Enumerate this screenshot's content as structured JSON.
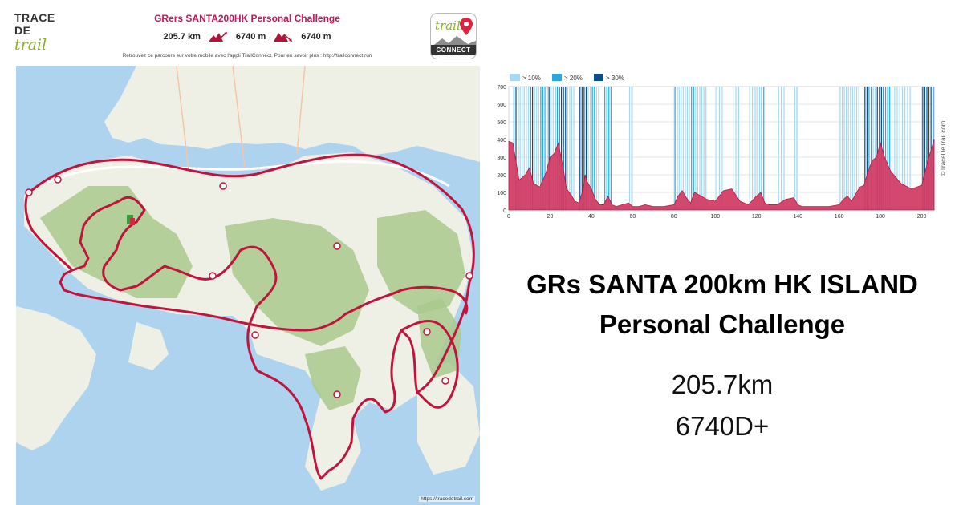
{
  "brand": {
    "line1": "TRACE",
    "line2": "DE",
    "line3": "trail"
  },
  "map_header": {
    "title": "GRers SANTA200HK Personal Challenge",
    "distance": "205.7 km",
    "ascent": "6740 m",
    "descent": "6740 m",
    "promo": "Retrouvez ce parcours sur votre mobile avec l'appli TrailConnect. Pour en savoir plus : http://trailconnect.run"
  },
  "trailconnect_logo": {
    "top": "trail",
    "bottom": "CONNECT"
  },
  "map": {
    "credit": "https://tracedetrail.com",
    "route_color": "#c0143c",
    "water_color": "#aed3ef",
    "land_color": "#eef0e6",
    "forest_color": "#a9c98b"
  },
  "profile": {
    "legend": [
      "> 10%",
      "> 20%",
      "> 30%"
    ],
    "legend_colors": [
      "#a5d8f2",
      "#29a9e0",
      "#0b4f8a"
    ],
    "credit": "©TraceDeTrail.com"
  },
  "chart_data": {
    "type": "area",
    "xlim": [
      0,
      206
    ],
    "ylim": [
      0,
      700
    ],
    "x_ticks": [
      0,
      20,
      40,
      60,
      80,
      100,
      120,
      140,
      160,
      180,
      200
    ],
    "y_ticks": [
      0,
      100,
      200,
      300,
      400,
      500,
      600,
      700
    ],
    "grid": true,
    "series": [
      {
        "x": [
          0,
          2,
          5,
          8,
          10,
          12,
          15,
          18,
          20,
          22,
          24,
          26,
          28,
          30,
          32,
          34,
          36,
          37,
          38,
          40,
          42,
          44,
          46,
          48,
          50,
          52,
          55,
          58,
          60,
          63,
          66,
          70,
          75,
          80,
          82,
          84,
          86,
          88,
          90,
          93,
          96,
          100,
          104,
          108,
          112,
          116,
          120,
          122,
          124,
          126,
          130,
          134,
          138,
          140,
          142,
          145,
          150,
          155,
          160,
          162,
          164,
          166,
          168,
          170,
          172,
          174,
          176,
          178,
          180,
          182,
          185,
          190,
          195,
          200,
          203,
          206
        ],
        "y": [
          390,
          380,
          170,
          200,
          240,
          150,
          130,
          210,
          300,
          320,
          380,
          260,
          120,
          90,
          50,
          40,
          120,
          200,
          160,
          120,
          60,
          30,
          30,
          80,
          30,
          20,
          30,
          40,
          20,
          20,
          30,
          20,
          20,
          30,
          80,
          110,
          70,
          40,
          100,
          80,
          60,
          50,
          110,
          120,
          50,
          30,
          80,
          100,
          40,
          30,
          30,
          60,
          70,
          30,
          20,
          20,
          20,
          20,
          30,
          60,
          80,
          50,
          90,
          130,
          140,
          220,
          280,
          300,
          380,
          300,
          220,
          150,
          120,
          140,
          280,
          400
        ]
      }
    ]
  },
  "right_panel": {
    "title_line1": "GRs SANTA 200km HK ISLAND",
    "title_line2": "Personal Challenge",
    "distance": "205.7km",
    "elevation": "6740D+"
  }
}
